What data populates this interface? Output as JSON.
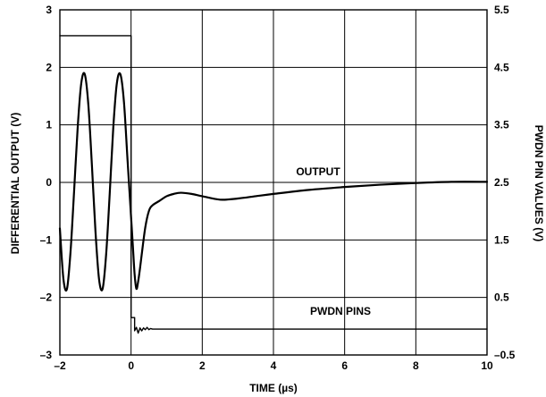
{
  "chart_data": {
    "type": "line",
    "title": "",
    "xlabel": "TIME (µs)",
    "ylabel_left": "DIFFERENTIAL OUTPUT (V)",
    "ylabel_right": "PWDN PIN VALUES (V)",
    "xlim": [
      -2,
      10
    ],
    "ylim_left": [
      -3,
      3
    ],
    "ylim_right": [
      -0.5,
      5.5
    ],
    "x_ticks": [
      -2,
      0,
      2,
      4,
      6,
      8,
      10
    ],
    "x_tick_labels": [
      "–2",
      "0",
      "2",
      "4",
      "6",
      "8",
      "10"
    ],
    "y_left_ticks": [
      -3,
      -2,
      -1,
      0,
      1,
      2,
      3
    ],
    "y_left_tick_labels": [
      "–3",
      "–2",
      "–1",
      "0",
      "1",
      "2",
      "3"
    ],
    "y_right_ticks": [
      -0.5,
      0.5,
      1.5,
      2.5,
      3.5,
      4.5,
      5.5
    ],
    "y_right_tick_labels": [
      "–0.5",
      "0.5",
      "1.5",
      "2.5",
      "3.5",
      "4.5",
      "5.5"
    ],
    "grid": true,
    "series": [
      {
        "name": "OUTPUT",
        "axis": "left",
        "x": [
          -2.0,
          -1.9,
          -1.8,
          -1.7,
          -1.6,
          -1.5,
          -1.4,
          -1.3,
          -1.2,
          -1.1,
          -1.0,
          -0.9,
          -0.8,
          -0.7,
          -0.6,
          -0.5,
          -0.4,
          -0.3,
          -0.2,
          -0.1,
          0.0,
          0.05,
          0.1,
          0.15,
          0.2,
          0.25,
          0.3,
          0.4,
          0.5,
          0.6,
          0.8,
          1.0,
          1.2,
          1.4,
          1.7,
          2.0,
          2.5,
          3.0,
          3.5,
          4.0,
          5.0,
          6.0,
          7.0,
          8.0,
          9.0,
          10.0
        ],
        "y": [
          -0.8,
          -1.68,
          -1.85,
          -1.2,
          -0.15,
          0.95,
          1.72,
          1.88,
          1.35,
          0.3,
          -0.85,
          -1.68,
          -1.85,
          -1.25,
          -0.2,
          0.95,
          1.72,
          1.88,
          1.4,
          0.4,
          -0.6,
          -1.1,
          -1.6,
          -1.85,
          -1.72,
          -1.5,
          -1.25,
          -0.78,
          -0.5,
          -0.4,
          -0.32,
          -0.24,
          -0.2,
          -0.18,
          -0.2,
          -0.24,
          -0.3,
          -0.28,
          -0.24,
          -0.2,
          -0.13,
          -0.08,
          -0.04,
          -0.01,
          0.01,
          0.01
        ]
      },
      {
        "name": "PWDN PINS",
        "axis": "right",
        "x": [
          -2.0,
          0.0,
          0.0,
          0.1,
          0.1,
          0.15,
          0.2,
          0.25,
          0.3,
          0.35,
          0.4,
          0.45,
          0.5,
          0.55,
          0.6,
          10.0
        ],
        "y": [
          5.05,
          5.05,
          0.15,
          0.15,
          -0.08,
          -0.02,
          -0.12,
          -0.03,
          -0.08,
          -0.03,
          -0.06,
          -0.02,
          -0.06,
          -0.04,
          -0.05,
          -0.05
        ]
      }
    ],
    "annotations": [
      "OUTPUT",
      "PWDN PINS"
    ]
  }
}
